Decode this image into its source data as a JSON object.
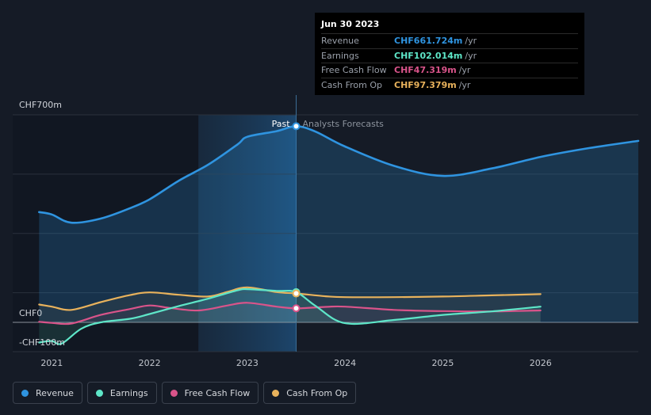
{
  "chart_data": {
    "type": "line",
    "y_axis_labels": {
      "top": "CHF700m",
      "zero": "CHF0",
      "bottom": "-CHF100m"
    },
    "ylim": [
      -100,
      700
    ],
    "x_ticks": [
      "2021",
      "2022",
      "2023",
      "2024",
      "2025",
      "2026"
    ],
    "x_tick_values": [
      2021,
      2022,
      2023,
      2024,
      2025,
      2026
    ],
    "xlim": [
      2020.6,
      2027.0
    ],
    "past_label": "Past",
    "forecast_label": "Analysts Forecasts",
    "past_region_start": 2022.5,
    "present": 2023.5,
    "series": [
      {
        "name": "Revenue",
        "color": "#2f94e0",
        "area": true,
        "points": [
          [
            2020.87,
            372
          ],
          [
            2021.0,
            364
          ],
          [
            2021.2,
            336
          ],
          [
            2021.5,
            350
          ],
          [
            2021.8,
            385
          ],
          [
            2022.0,
            415
          ],
          [
            2022.3,
            478
          ],
          [
            2022.6,
            532
          ],
          [
            2022.9,
            600
          ],
          [
            2023.0,
            626
          ],
          [
            2023.3,
            645
          ],
          [
            2023.5,
            661.7
          ],
          [
            2023.7,
            643
          ],
          [
            2024.0,
            593
          ],
          [
            2024.5,
            528
          ],
          [
            2025.0,
            494
          ],
          [
            2025.5,
            519
          ],
          [
            2026.0,
            558
          ],
          [
            2026.5,
            588
          ],
          [
            2027.0,
            612
          ]
        ]
      },
      {
        "name": "Earnings",
        "color": "#5ee6c8",
        "area": true,
        "points": [
          [
            2020.87,
            -68
          ],
          [
            2021.0,
            -63
          ],
          [
            2021.1,
            -72
          ],
          [
            2021.3,
            -22
          ],
          [
            2021.5,
            0
          ],
          [
            2021.8,
            12
          ],
          [
            2022.0,
            28
          ],
          [
            2022.3,
            55
          ],
          [
            2022.6,
            80
          ],
          [
            2022.9,
            108
          ],
          [
            2023.0,
            112
          ],
          [
            2023.3,
            106
          ],
          [
            2023.5,
            102
          ],
          [
            2023.7,
            55
          ],
          [
            2024.0,
            -3
          ],
          [
            2024.5,
            8
          ],
          [
            2025.0,
            25
          ],
          [
            2025.5,
            37
          ],
          [
            2026.0,
            53
          ]
        ]
      },
      {
        "name": "Free Cash Flow",
        "color": "#d9548a",
        "area": false,
        "points": [
          [
            2020.87,
            2
          ],
          [
            2021.0,
            -2
          ],
          [
            2021.2,
            -4
          ],
          [
            2021.5,
            25
          ],
          [
            2021.8,
            45
          ],
          [
            2022.0,
            57
          ],
          [
            2022.2,
            49
          ],
          [
            2022.5,
            40
          ],
          [
            2022.8,
            57
          ],
          [
            2023.0,
            66
          ],
          [
            2023.3,
            53
          ],
          [
            2023.5,
            47.3
          ],
          [
            2023.8,
            52
          ],
          [
            2024.0,
            53
          ],
          [
            2024.5,
            42
          ],
          [
            2025.0,
            38
          ],
          [
            2025.5,
            37
          ],
          [
            2026.0,
            40
          ]
        ]
      },
      {
        "name": "Cash From Op",
        "color": "#e8b25c",
        "area": false,
        "points": [
          [
            2020.87,
            60
          ],
          [
            2021.0,
            53
          ],
          [
            2021.2,
            42
          ],
          [
            2021.5,
            68
          ],
          [
            2021.8,
            92
          ],
          [
            2022.0,
            101
          ],
          [
            2022.3,
            93
          ],
          [
            2022.6,
            87
          ],
          [
            2022.8,
            103
          ],
          [
            2023.0,
            118
          ],
          [
            2023.3,
            102
          ],
          [
            2023.5,
            97.4
          ],
          [
            2023.8,
            88
          ],
          [
            2024.0,
            85
          ],
          [
            2024.5,
            85
          ],
          [
            2025.0,
            87
          ],
          [
            2025.5,
            91
          ],
          [
            2026.0,
            95
          ]
        ]
      }
    ]
  },
  "tooltip": {
    "date": "Jun 30 2023",
    "rows": [
      {
        "label": "Revenue",
        "value": "CHF661.724m",
        "unit": "/yr",
        "color": "#2f94e0"
      },
      {
        "label": "Earnings",
        "value": "CHF102.014m",
        "unit": "/yr",
        "color": "#5ee6c8"
      },
      {
        "label": "Free Cash Flow",
        "value": "CHF47.319m",
        "unit": "/yr",
        "color": "#d9548a"
      },
      {
        "label": "Cash From Op",
        "value": "CHF97.379m",
        "unit": "/yr",
        "color": "#e8b25c"
      }
    ]
  },
  "legend": [
    {
      "label": "Revenue",
      "color": "#2f94e0"
    },
    {
      "label": "Earnings",
      "color": "#5ee6c8"
    },
    {
      "label": "Free Cash Flow",
      "color": "#d9548a"
    },
    {
      "label": "Cash From Op",
      "color": "#e8b25c"
    }
  ]
}
